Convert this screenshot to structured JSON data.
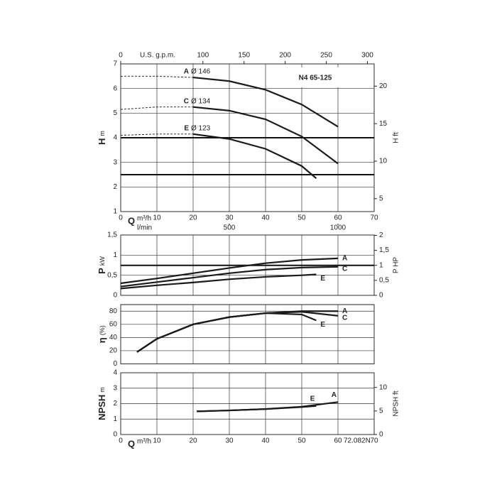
{
  "chart_data": [
    {
      "type": "line",
      "title": "N4 65-125",
      "ylabel": "H",
      "yunit": "m",
      "y2label": "H ft",
      "xlabel": "Q",
      "xunit": "m³/h",
      "show_xticks": true,
      "xlim": [
        0,
        70
      ],
      "xticks": [
        0,
        10,
        20,
        30,
        40,
        50,
        60,
        70
      ],
      "ylim": [
        1,
        7
      ],
      "yticks": [
        1,
        2,
        3,
        4,
        5,
        6,
        7
      ],
      "y2lim": [
        3.281,
        22.966
      ],
      "y2ticks": [
        5,
        10,
        15,
        20
      ],
      "thick_lines": [
        4,
        2.5
      ],
      "grid": true,
      "gpm_axis": {
        "label": "U.S. g.p.m.",
        "lim": [
          0,
          308.2
        ],
        "ticks": [
          0,
          100,
          150,
          200,
          250,
          300
        ]
      },
      "lmin_axis": {
        "label": "l/min",
        "lim": [
          0,
          1166.7
        ],
        "ticks": [
          500,
          1000
        ]
      },
      "series": [
        {
          "name": "A",
          "diameter": "Ø 146",
          "color": "#1a1a1a",
          "x": [
            0,
            10,
            20,
            30,
            40,
            50,
            60
          ],
          "values": [
            null,
            null,
            6.45,
            6.3,
            5.95,
            5.35,
            4.45
          ],
          "dashed_values": [
            6.5,
            6.5,
            6.45,
            null,
            null,
            null,
            null
          ]
        },
        {
          "name": "C",
          "diameter": "Ø 134",
          "color": "#1a1a1a",
          "x": [
            0,
            10,
            20,
            30,
            40,
            50,
            60
          ],
          "values": [
            null,
            null,
            5.25,
            5.1,
            4.75,
            4.05,
            2.95
          ],
          "dashed_values": [
            5.15,
            5.25,
            5.25,
            null,
            null,
            null,
            null
          ]
        },
        {
          "name": "E",
          "diameter": "Ø 123",
          "color": "#1a1a1a",
          "x": [
            0,
            10,
            20,
            30,
            40,
            50,
            54
          ],
          "values": [
            null,
            null,
            4.15,
            3.95,
            3.55,
            2.85,
            2.35
          ],
          "dashed_values": [
            4.1,
            4.15,
            4.15,
            null,
            null,
            null,
            null
          ]
        }
      ]
    },
    {
      "type": "line",
      "ylabel": "P",
      "yunit": "kW",
      "y2label": "P HP",
      "show_xticks": false,
      "xlim": [
        0,
        70
      ],
      "xticks": [
        0,
        10,
        20,
        30,
        40,
        50,
        60,
        70
      ],
      "ylim": [
        0,
        1.5
      ],
      "yticks": [
        0,
        {
          "value": 0.5,
          "label": "0,5"
        },
        1,
        {
          "value": 1.5,
          "label": "1,5"
        }
      ],
      "y2lim": [
        0,
        2.011
      ],
      "y2ticks": [
        0,
        {
          "value": 0.5,
          "label": "0,5"
        },
        1,
        {
          "value": 1.5,
          "label": "1,5"
        },
        2
      ],
      "thick_lines": [
        0.7457
      ],
      "grid": true,
      "series": [
        {
          "name": "A",
          "color": "#1a1a1a",
          "x": [
            0,
            10,
            20,
            30,
            40,
            50,
            60
          ],
          "values": [
            0.3,
            0.42,
            0.55,
            0.68,
            0.8,
            0.88,
            0.92
          ]
        },
        {
          "name": "C",
          "color": "#1a1a1a",
          "x": [
            0,
            10,
            20,
            30,
            40,
            50,
            60
          ],
          "values": [
            0.22,
            0.33,
            0.44,
            0.55,
            0.64,
            0.69,
            0.71
          ]
        },
        {
          "name": "E",
          "color": "#1a1a1a",
          "x": [
            0,
            10,
            20,
            30,
            40,
            50,
            54
          ],
          "values": [
            0.17,
            0.25,
            0.32,
            0.4,
            0.46,
            0.5,
            0.52
          ]
        }
      ]
    },
    {
      "type": "line",
      "ylabel": "η",
      "yunit": "(%)",
      "show_xticks": false,
      "xlim": [
        0,
        70
      ],
      "xticks": [
        0,
        10,
        20,
        30,
        40,
        50,
        60,
        70
      ],
      "ylim": [
        0,
        90
      ],
      "yticks": [
        0,
        20,
        40,
        60,
        80
      ],
      "grid": true,
      "series": [
        {
          "name": "A",
          "color": "#1a1a1a",
          "x": [
            4.5,
            10,
            20,
            30,
            40,
            50,
            60
          ],
          "values": [
            18,
            38,
            60,
            71,
            77,
            80,
            80
          ]
        },
        {
          "name": "C",
          "color": "#1a1a1a",
          "x": [
            4.5,
            10,
            20,
            30,
            40,
            50,
            60
          ],
          "values": [
            18,
            38,
            60,
            71,
            77,
            79,
            73
          ]
        },
        {
          "name": "E",
          "color": "#1a1a1a",
          "x": [
            4.5,
            10,
            20,
            30,
            40,
            50,
            54
          ],
          "values": [
            18,
            38,
            60,
            71,
            77,
            75,
            66
          ]
        }
      ]
    },
    {
      "type": "line",
      "ylabel": "NPSH",
      "yunit": "m",
      "y2label": "NPSH ft",
      "xlabel": "Q",
      "xunit": "m³/h",
      "show_xticks": true,
      "note": "72.082N",
      "xlim": [
        0,
        70
      ],
      "xticks": [
        0,
        10,
        20,
        30,
        40,
        50,
        60,
        70
      ],
      "ylim": [
        0,
        4
      ],
      "yticks": [
        0,
        1,
        2,
        3,
        4
      ],
      "y2lim": [
        0,
        13.12
      ],
      "y2ticks": [
        0,
        5,
        10
      ],
      "grid": true,
      "series": [
        {
          "name": "E",
          "color": "#1a1a1a",
          "x": [
            21,
            30,
            40,
            50,
            54
          ],
          "values": [
            1.5,
            1.56,
            1.65,
            1.78,
            1.85
          ]
        },
        {
          "name": "A",
          "color": "#1a1a1a",
          "x": [
            21,
            30,
            40,
            50,
            60
          ],
          "values": [
            1.5,
            1.56,
            1.65,
            1.8,
            2.1
          ]
        }
      ]
    }
  ]
}
